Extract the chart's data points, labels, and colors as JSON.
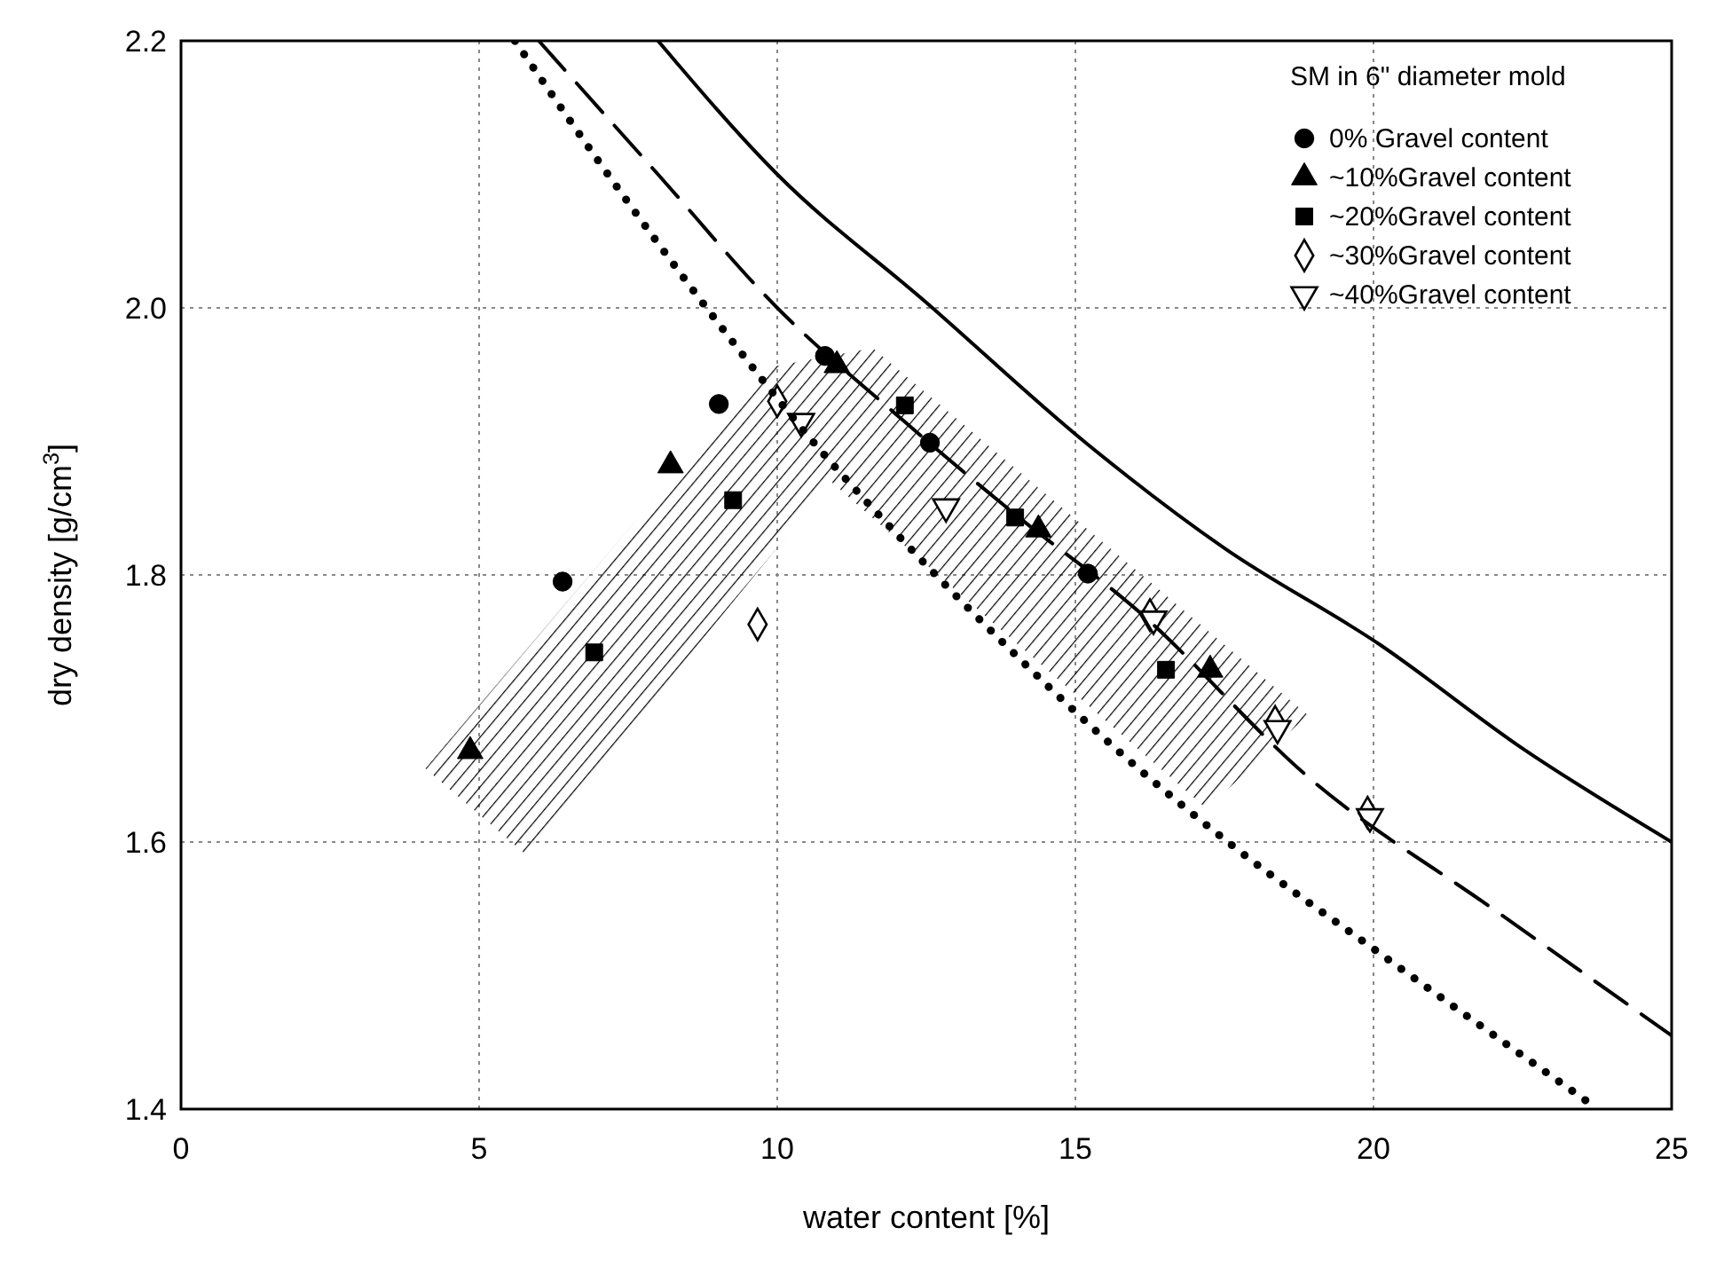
{
  "chart_data": {
    "type": "scatter",
    "xlabel": "water content  [%]",
    "ylabel": "dry density  [g/cm$^{3}$]",
    "legend_title": "SM in 6\" diameter mold",
    "xlim": [
      0,
      25
    ],
    "ylim": [
      1.4,
      2.2
    ],
    "xticks": [
      0,
      5,
      10,
      15,
      20,
      25
    ],
    "yticks": [
      1.4,
      1.6,
      1.8,
      {
        "value": 2,
        "label": "2.0"
      },
      2.2
    ],
    "grid": true,
    "legend": "top right",
    "series": [
      {
        "name": "0% Gravel content",
        "color": "#000000",
        "marker": "circle",
        "x": [
          6.4,
          9.02,
          10.8,
          12.56,
          15.21
        ],
        "values": [
          1.795,
          1.928,
          1.964,
          1.899,
          1.801
        ]
      },
      {
        "name": "~10%Gravel content",
        "color": "#000000",
        "marker": "triangle",
        "x": [
          4.85,
          8.21,
          11.0,
          14.38,
          17.26
        ],
        "values": [
          1.668,
          1.882,
          1.957,
          1.834,
          1.729
        ]
      },
      {
        "name": "~20%Gravel content",
        "color": "#000000",
        "marker": "square",
        "x": [
          6.93,
          9.26,
          12.14,
          13.99,
          16.52
        ],
        "values": [
          1.742,
          1.856,
          1.927,
          1.843,
          1.729
        ]
      },
      {
        "name": "~30%Gravel content",
        "color": "#000000",
        "marker": "diamond",
        "x": [
          9.67,
          10.0,
          16.25,
          18.35,
          19.9
        ],
        "values": [
          1.763,
          1.93,
          1.77,
          1.69,
          1.622
        ]
      },
      {
        "name": "~40%Gravel content",
        "color": "#000000",
        "marker": "triangle-down",
        "x": [
          10.4,
          12.83,
          16.31,
          18.39,
          19.94
        ],
        "values": [
          1.915,
          1.851,
          1.767,
          1.685,
          1.619
        ]
      },
      {
        "type": "line",
        "color": "#000000",
        "line_style": "solid",
        "x": [
          8.0,
          10,
          12.5,
          15.2,
          17.5,
          20.1,
          22.5,
          25
        ],
        "values": [
          2.2,
          2.1,
          2.004,
          1.898,
          1.82,
          1.748,
          1.67,
          1.6
        ]
      },
      {
        "type": "line",
        "color": "#000000",
        "line_style": "dashed",
        "x": [
          6.0,
          8,
          10,
          12,
          14,
          16,
          19,
          22,
          25
        ],
        "values": [
          2.2,
          2.1,
          2.0,
          1.92,
          1.845,
          1.775,
          1.645,
          1.55,
          1.455
        ]
      },
      {
        "type": "line",
        "color": "#000000",
        "line_style": "dotted",
        "x": [
          5.6,
          7,
          9.02,
          10.5,
          12.08,
          14,
          15.8,
          17.7,
          20,
          23.7
        ],
        "values": [
          2.2,
          2.11,
          1.988,
          1.905,
          1.827,
          1.74,
          1.665,
          1.595,
          1.52,
          1.402
        ]
      }
    ]
  }
}
